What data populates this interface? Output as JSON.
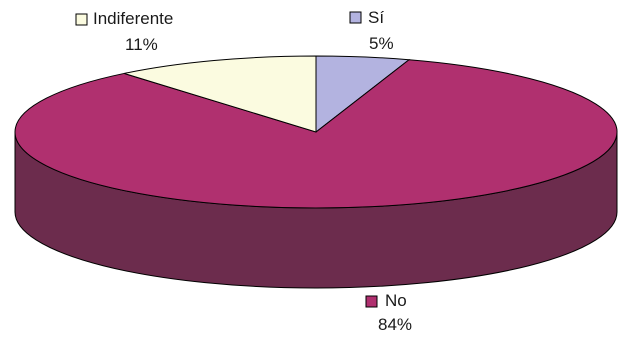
{
  "chart_data": {
    "type": "pie",
    "three_d": true,
    "title": "",
    "legend": "none",
    "slices": [
      {
        "label": "Sí",
        "value": 5,
        "display": "5%",
        "color": "#b3b3e0",
        "side_color": "#7f7fb0"
      },
      {
        "label": "No",
        "value": 84,
        "display": "84%",
        "color": "#b0306f",
        "side_color": "#6c2c4d"
      },
      {
        "label": "Indiferente",
        "value": 11,
        "display": "11%",
        "color": "#fbfbe0",
        "side_color": "#c8c8a8"
      }
    ]
  }
}
